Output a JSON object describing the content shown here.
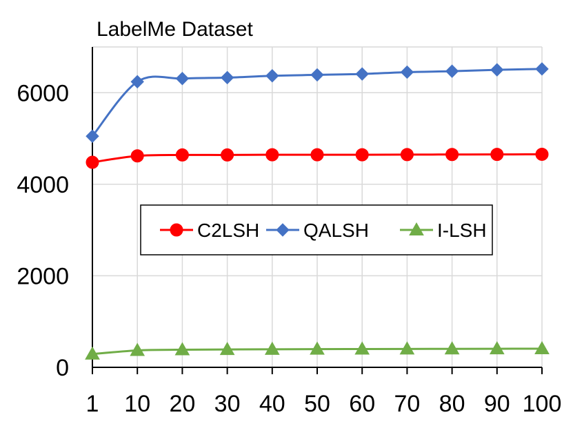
{
  "chart_data": {
    "type": "line",
    "title": "LabelMe Dataset",
    "xlabel": "",
    "ylabel": "",
    "categories": [
      "1",
      "10",
      "20",
      "30",
      "40",
      "50",
      "60",
      "70",
      "80",
      "90",
      "100"
    ],
    "ylim": [
      0,
      7000
    ],
    "yticks": [
      0,
      2000,
      4000,
      6000
    ],
    "grid": true,
    "legend_position": "center",
    "series": [
      {
        "name": "C2LSH",
        "color": "#ff0000",
        "marker": "circle",
        "values": [
          4480,
          4620,
          4640,
          4640,
          4645,
          4645,
          4645,
          4648,
          4650,
          4652,
          4655
        ]
      },
      {
        "name": "QALSH",
        "color": "#4472c4",
        "marker": "diamond",
        "values": [
          5050,
          6240,
          6310,
          6330,
          6370,
          6390,
          6410,
          6450,
          6470,
          6500,
          6520
        ]
      },
      {
        "name": "I-LSH",
        "color": "#70ad47",
        "marker": "triangle",
        "values": [
          290,
          370,
          385,
          390,
          395,
          398,
          400,
          402,
          404,
          406,
          408
        ]
      }
    ]
  }
}
